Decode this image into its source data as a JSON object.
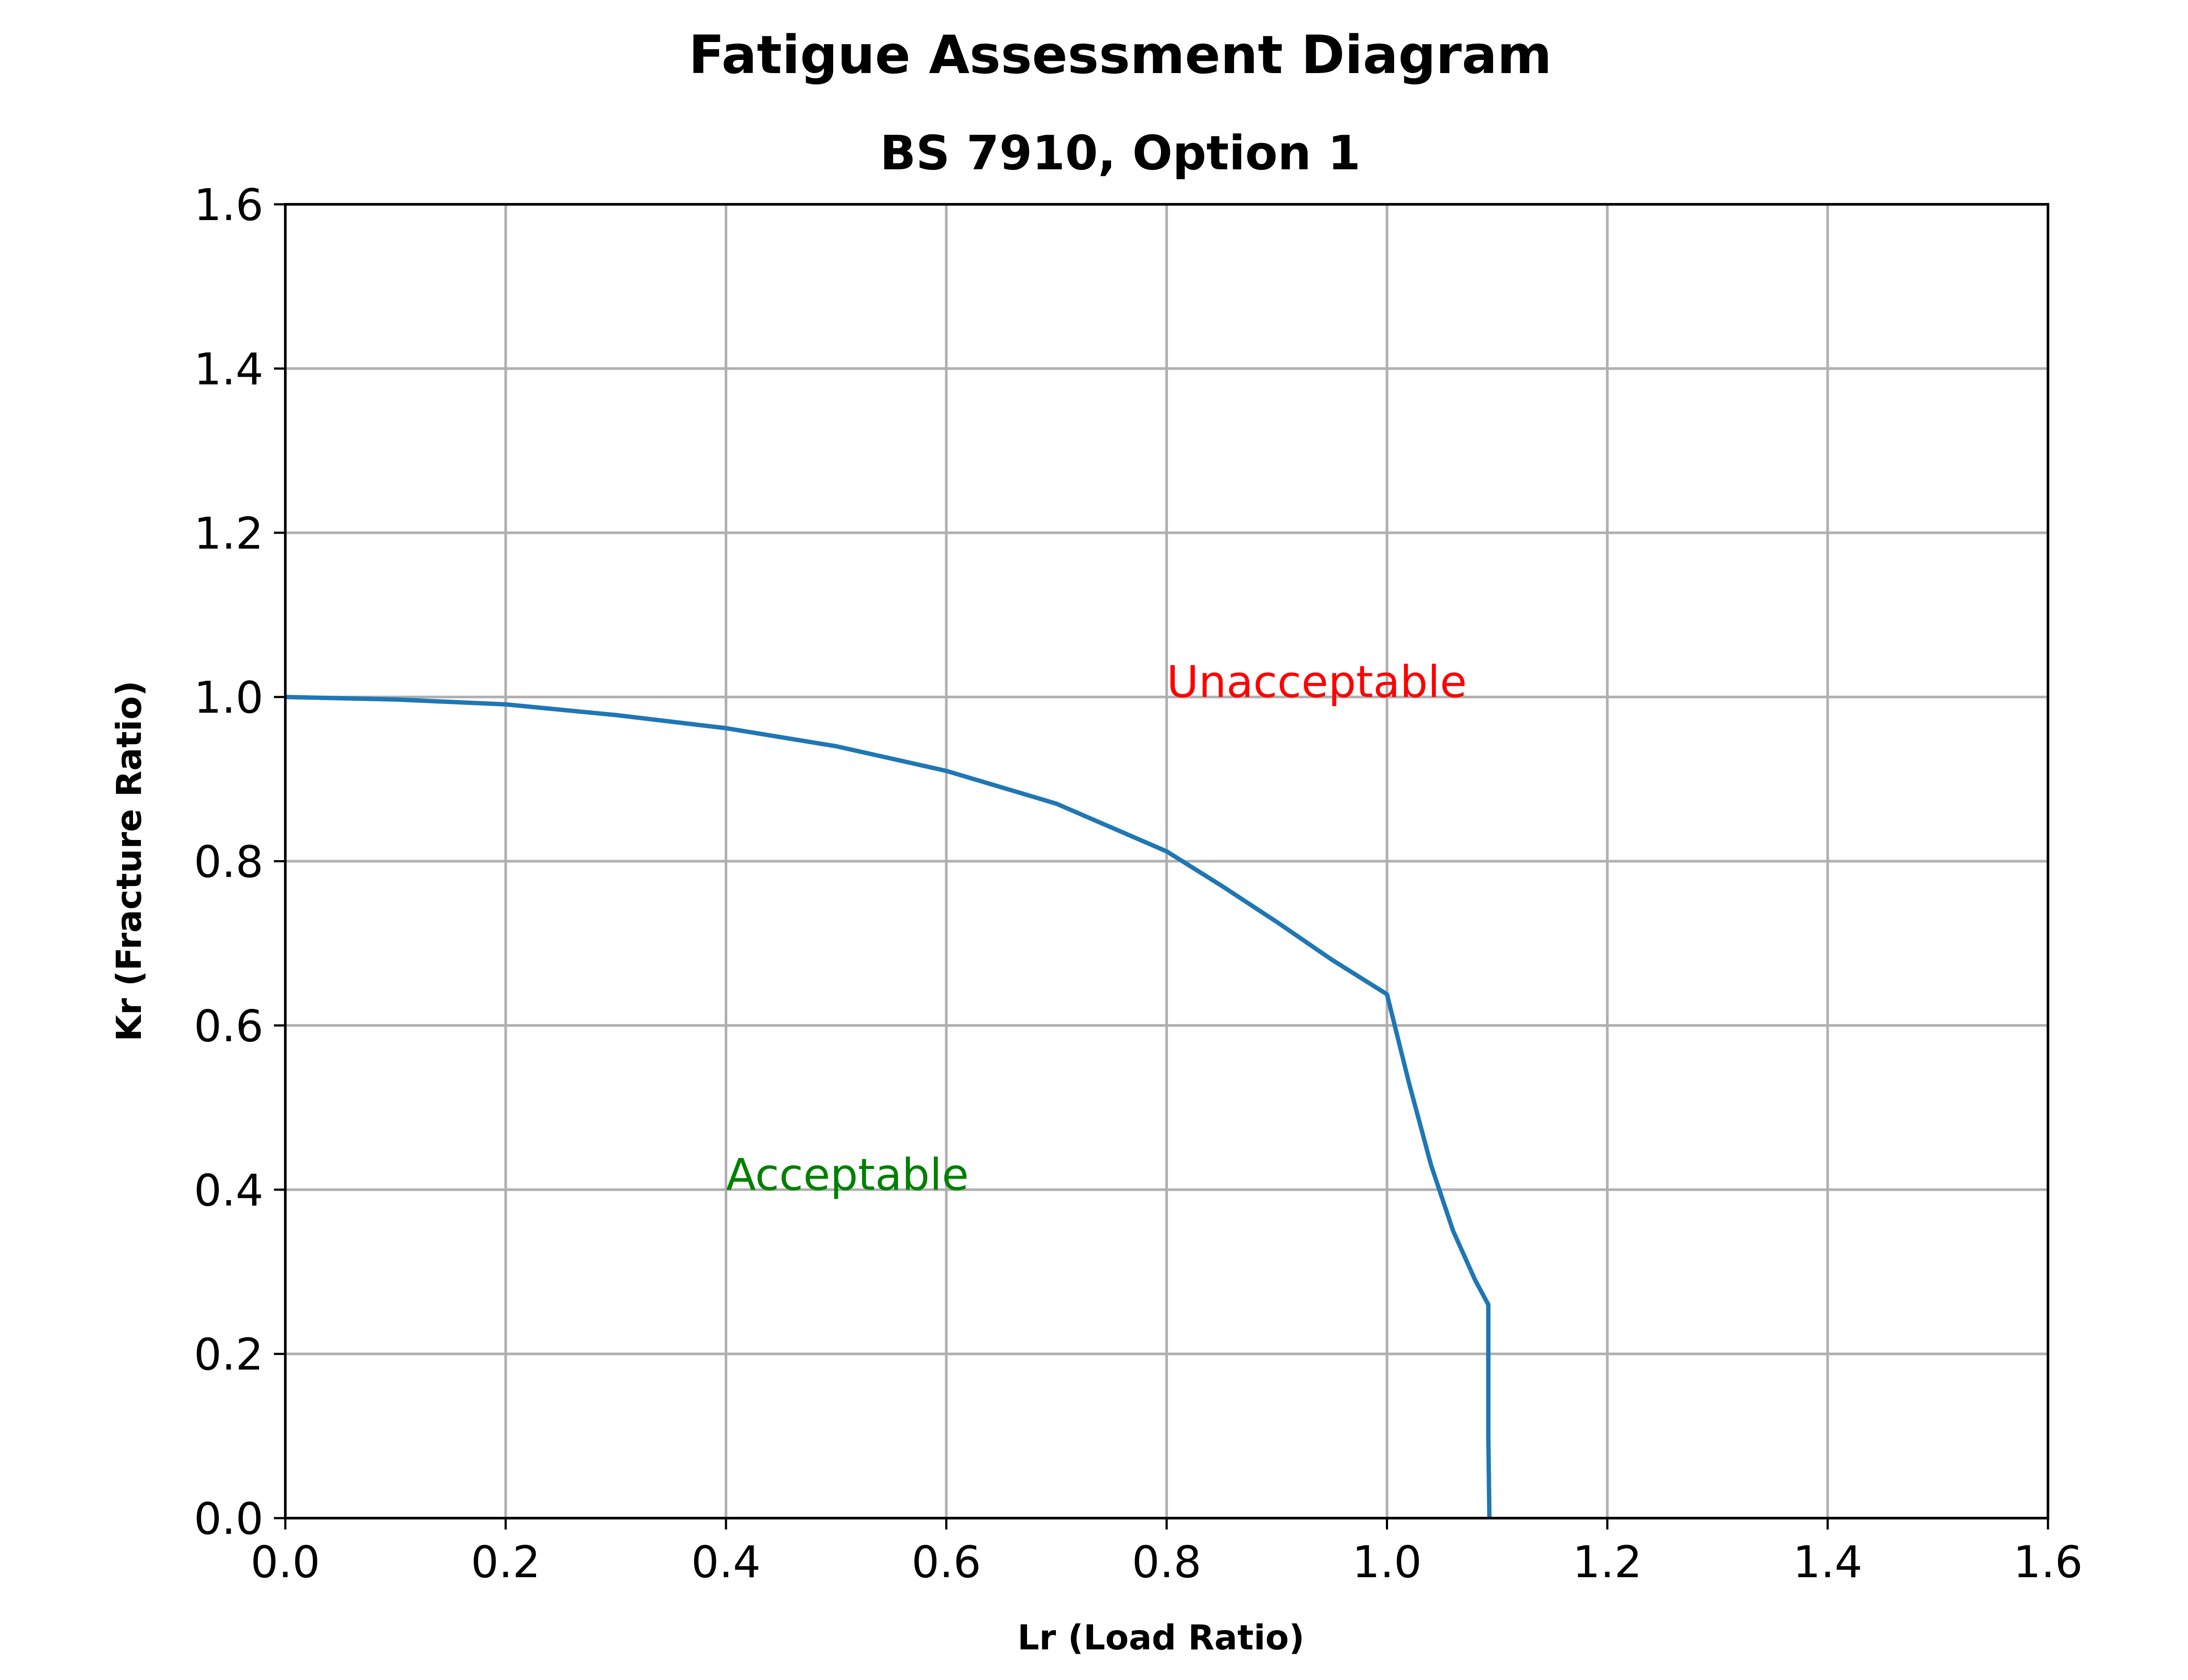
{
  "chart_data": {
    "type": "line",
    "title": "Fatigue Assessment Diagram",
    "subtitle": "BS 7910, Option 1",
    "xlabel": "Lr (Load Ratio)",
    "ylabel": "Kr (Fracture Ratio)",
    "xlim": [
      0,
      1.6
    ],
    "ylim": [
      0,
      1.6
    ],
    "xticks": [
      "0.0",
      "0.2",
      "0.4",
      "0.6",
      "0.8",
      "1.0",
      "1.2",
      "1.4",
      "1.6"
    ],
    "yticks": [
      "0.0",
      "0.2",
      "0.4",
      "0.6",
      "0.8",
      "1.0",
      "1.2",
      "1.4",
      "1.6"
    ],
    "grid": true,
    "series": [
      {
        "color": "#1f77b4",
        "x": [
          0.0,
          0.1,
          0.2,
          0.3,
          0.4,
          0.5,
          0.6,
          0.7,
          0.8,
          0.85,
          0.9,
          0.95,
          1.0,
          1.02,
          1.04,
          1.06,
          1.08,
          1.092,
          1.092,
          1.093
        ],
        "y": [
          1.0,
          0.997,
          0.991,
          0.978,
          0.962,
          0.94,
          0.91,
          0.87,
          0.812,
          0.77,
          0.726,
          0.68,
          0.638,
          0.53,
          0.43,
          0.35,
          0.29,
          0.26,
          0.1,
          0.0
        ]
      }
    ],
    "annotations": [
      {
        "text": "Unacceptable",
        "x": 0.8,
        "y": 1.0,
        "color": "#ff0000"
      },
      {
        "text": "Acceptable",
        "x": 0.4,
        "y": 0.4,
        "color": "#008000"
      }
    ]
  }
}
